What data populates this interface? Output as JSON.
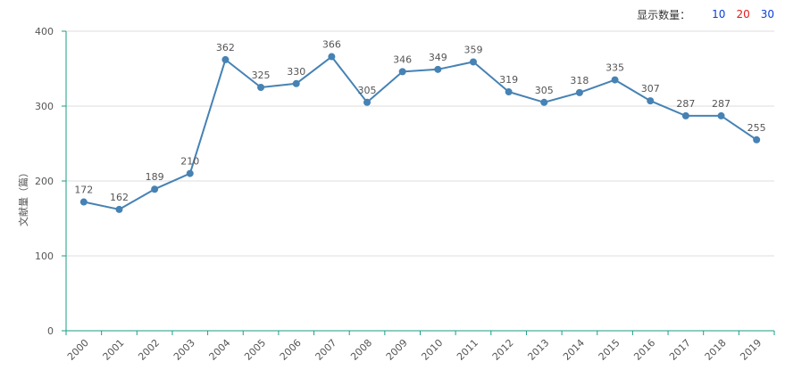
{
  "count_selector": {
    "label": "显示数量：",
    "options": [
      {
        "label": "10",
        "color": "#0b3fd9"
      },
      {
        "label": "20",
        "color": "#e61919"
      },
      {
        "label": "30",
        "color": "#0b3fd9"
      }
    ]
  },
  "chart_data": {
    "type": "line",
    "title": "",
    "xlabel": "",
    "ylabel": "文献量（篇）",
    "ylim": [
      0,
      400
    ],
    "yticks": [
      0,
      100,
      200,
      300,
      400
    ],
    "grid": true,
    "line_color": "#4682b4",
    "axis_color": "#1a9e86",
    "categories": [
      "2000",
      "2001",
      "2002",
      "2003",
      "2004",
      "2005",
      "2006",
      "2007",
      "2008",
      "2009",
      "2010",
      "2011",
      "2012",
      "2013",
      "2014",
      "2015",
      "2016",
      "2017",
      "2018",
      "2019"
    ],
    "values": [
      172,
      162,
      189,
      210,
      362,
      325,
      330,
      366,
      305,
      346,
      349,
      359,
      319,
      305,
      318,
      335,
      307,
      287,
      287,
      255
    ]
  }
}
